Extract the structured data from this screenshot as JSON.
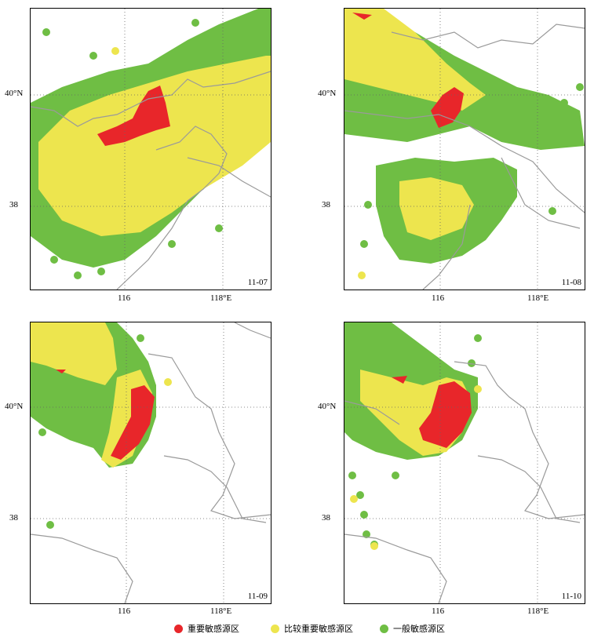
{
  "colors": {
    "important": "#e8262a",
    "relative": "#ede54e",
    "general": "#6fbe44",
    "border": "#9a9a9a"
  },
  "panels": [
    {
      "date": "11-07"
    },
    {
      "date": "11-08"
    },
    {
      "date": "11-09"
    },
    {
      "date": "11-10"
    }
  ],
  "axes": {
    "lat_labels": [
      "40°N",
      "38"
    ],
    "lon_labels": [
      "116",
      "118°E"
    ]
  },
  "legend": [
    {
      "label": "重要敏感源区",
      "color": "#e8262a"
    },
    {
      "label": "比较重要敏感源区",
      "color": "#ede54e"
    },
    {
      "label": "一般敏感源区",
      "color": "#6fbe44"
    }
  ]
}
